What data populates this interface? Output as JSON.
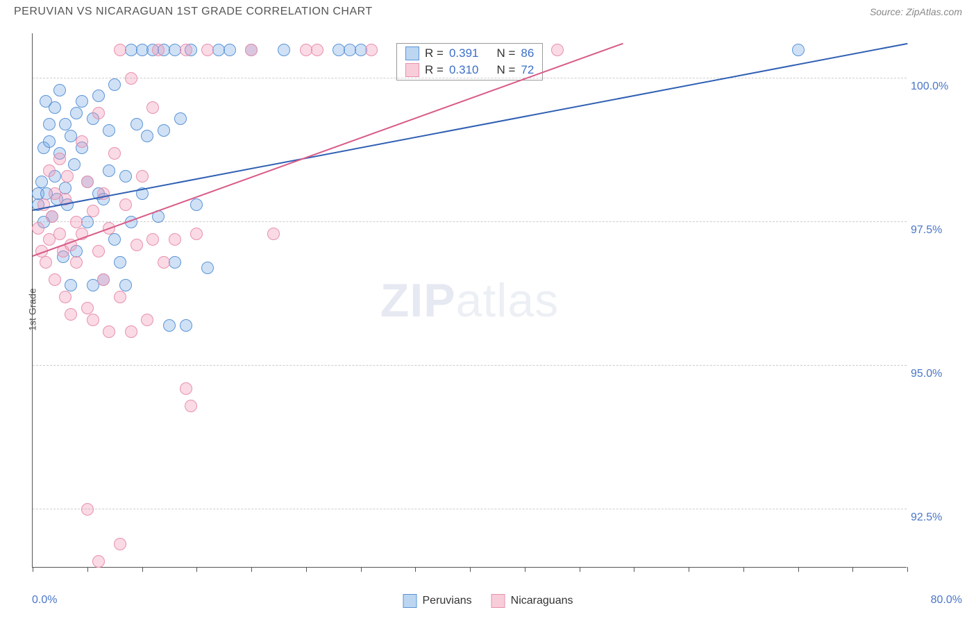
{
  "header": {
    "title": "PERUVIAN VS NICARAGUAN 1ST GRADE CORRELATION CHART",
    "source": "Source: ZipAtlas.com"
  },
  "axis": {
    "y_title": "1st Grade",
    "x_min_label": "0.0%",
    "x_max_label": "80.0%"
  },
  "chart": {
    "type": "scatter",
    "background_color": "#ffffff",
    "grid_color": "#cccccc",
    "axis_color": "#555555",
    "x_range": [
      0,
      80
    ],
    "y_range": [
      91.5,
      100.8
    ],
    "y_ticks": [
      92.5,
      95.0,
      97.5,
      100.0
    ],
    "y_tick_labels": [
      "92.5%",
      "95.0%",
      "97.5%",
      "100.0%"
    ],
    "x_minor_ticks": [
      0,
      5,
      10,
      15,
      20,
      25,
      30,
      35,
      40,
      45,
      50,
      55,
      60,
      65,
      70,
      75,
      80
    ],
    "marker_radius": 9,
    "marker_stroke_width": 1.5,
    "series": [
      {
        "name": "Peruvians",
        "fill": "rgba(120,170,230,0.35)",
        "stroke": "#5a94d6",
        "swatch_fill": "#bcd6f2",
        "swatch_stroke": "#5a94d6",
        "R": "0.391",
        "N": "86",
        "trend": {
          "x1": 0,
          "y1": 97.7,
          "x2": 80,
          "y2": 100.6,
          "color": "#2f5fb3",
          "width": 2
        },
        "points": [
          [
            0.5,
            98.0
          ],
          [
            0.5,
            97.8
          ],
          [
            0.8,
            98.2
          ],
          [
            1.0,
            97.5
          ],
          [
            1.0,
            98.8
          ],
          [
            1.2,
            99.6
          ],
          [
            1.3,
            98.0
          ],
          [
            1.5,
            98.9
          ],
          [
            1.5,
            99.2
          ],
          [
            1.8,
            97.6
          ],
          [
            2.0,
            98.3
          ],
          [
            2.0,
            99.5
          ],
          [
            2.2,
            97.9
          ],
          [
            2.5,
            98.7
          ],
          [
            2.5,
            99.8
          ],
          [
            2.8,
            96.9
          ],
          [
            3.0,
            99.2
          ],
          [
            3.0,
            98.1
          ],
          [
            3.2,
            97.8
          ],
          [
            3.5,
            99.0
          ],
          [
            3.5,
            96.4
          ],
          [
            3.8,
            98.5
          ],
          [
            4.0,
            99.4
          ],
          [
            4.0,
            97.0
          ],
          [
            4.5,
            98.8
          ],
          [
            4.5,
            99.6
          ],
          [
            5.0,
            97.5
          ],
          [
            5.0,
            98.2
          ],
          [
            5.5,
            99.3
          ],
          [
            5.5,
            96.4
          ],
          [
            6.0,
            98.0
          ],
          [
            6.0,
            99.7
          ],
          [
            6.5,
            97.9
          ],
          [
            6.5,
            96.5
          ],
          [
            7.0,
            99.1
          ],
          [
            7.0,
            98.4
          ],
          [
            7.5,
            99.9
          ],
          [
            7.5,
            97.2
          ],
          [
            8.0,
            96.8
          ],
          [
            8.5,
            98.3
          ],
          [
            8.5,
            96.4
          ],
          [
            9.0,
            100.5
          ],
          [
            9.0,
            97.5
          ],
          [
            9.5,
            99.2
          ],
          [
            10.0,
            100.5
          ],
          [
            10.0,
            98.0
          ],
          [
            10.5,
            99.0
          ],
          [
            11.0,
            100.5
          ],
          [
            11.5,
            97.6
          ],
          [
            12.0,
            99.1
          ],
          [
            12.0,
            100.5
          ],
          [
            12.5,
            95.7
          ],
          [
            13.0,
            100.5
          ],
          [
            13.0,
            96.8
          ],
          [
            13.5,
            99.3
          ],
          [
            14.0,
            95.7
          ],
          [
            14.5,
            100.5
          ],
          [
            15.0,
            97.8
          ],
          [
            16.0,
            96.7
          ],
          [
            17.0,
            100.5
          ],
          [
            18.0,
            100.5
          ],
          [
            20.0,
            100.5
          ],
          [
            23.0,
            100.5
          ],
          [
            28.0,
            100.5
          ],
          [
            29.0,
            100.5
          ],
          [
            30.0,
            100.5
          ],
          [
            70.0,
            100.5
          ]
        ]
      },
      {
        "name": "Nicaraguans",
        "fill": "rgba(240,150,180,0.35)",
        "stroke": "#e890ad",
        "swatch_fill": "#f7cdd9",
        "swatch_stroke": "#e890ad",
        "R": "0.310",
        "N": "72",
        "trend": {
          "x1": 0,
          "y1": 96.9,
          "x2": 54,
          "y2": 100.6,
          "color": "#d85a87",
          "width": 2
        },
        "points": [
          [
            0.5,
            97.4
          ],
          [
            0.8,
            97.0
          ],
          [
            1.0,
            97.8
          ],
          [
            1.2,
            96.8
          ],
          [
            1.5,
            98.4
          ],
          [
            1.5,
            97.2
          ],
          [
            1.8,
            97.6
          ],
          [
            2.0,
            98.0
          ],
          [
            2.0,
            96.5
          ],
          [
            2.5,
            97.3
          ],
          [
            2.5,
            98.6
          ],
          [
            2.8,
            97.0
          ],
          [
            3.0,
            96.2
          ],
          [
            3.0,
            97.9
          ],
          [
            3.2,
            98.3
          ],
          [
            3.5,
            97.1
          ],
          [
            3.5,
            95.9
          ],
          [
            4.0,
            97.5
          ],
          [
            4.0,
            96.8
          ],
          [
            4.5,
            98.9
          ],
          [
            4.5,
            97.3
          ],
          [
            5.0,
            96.0
          ],
          [
            5.0,
            98.2
          ],
          [
            5.5,
            97.7
          ],
          [
            5.5,
            95.8
          ],
          [
            6.0,
            99.4
          ],
          [
            6.0,
            97.0
          ],
          [
            6.5,
            96.5
          ],
          [
            6.5,
            98.0
          ],
          [
            7.0,
            95.6
          ],
          [
            7.0,
            97.4
          ],
          [
            7.5,
            98.7
          ],
          [
            8.0,
            96.2
          ],
          [
            8.0,
            100.5
          ],
          [
            8.5,
            97.8
          ],
          [
            9.0,
            95.6
          ],
          [
            9.0,
            100.0
          ],
          [
            9.5,
            97.1
          ],
          [
            10.0,
            98.3
          ],
          [
            10.5,
            95.8
          ],
          [
            11.0,
            99.5
          ],
          [
            11.0,
            97.2
          ],
          [
            11.5,
            100.5
          ],
          [
            12.0,
            96.8
          ],
          [
            13.0,
            97.2
          ],
          [
            14.0,
            100.5
          ],
          [
            14.0,
            94.6
          ],
          [
            14.5,
            94.3
          ],
          [
            15.0,
            97.3
          ],
          [
            16.0,
            100.5
          ],
          [
            20.0,
            100.5
          ],
          [
            22.0,
            97.3
          ],
          [
            25.0,
            100.5
          ],
          [
            26.0,
            100.5
          ],
          [
            31.0,
            100.5
          ],
          [
            48.0,
            100.5
          ],
          [
            5.0,
            92.5
          ],
          [
            6.0,
            91.6
          ],
          [
            8.0,
            91.9
          ]
        ]
      }
    ]
  },
  "legend_top": {
    "rows": [
      {
        "swatch_fill": "#bcd6f2",
        "swatch_stroke": "#5a94d6",
        "r_label": "R =",
        "r_val": "0.391",
        "n_label": "N =",
        "n_val": "86"
      },
      {
        "swatch_fill": "#f7cdd9",
        "swatch_stroke": "#e890ad",
        "r_label": "R =",
        "r_val": "0.310",
        "n_label": "N =",
        "n_val": "72"
      }
    ]
  },
  "legend_bottom": {
    "items": [
      {
        "swatch_fill": "#bcd6f2",
        "swatch_stroke": "#5a94d6",
        "label": "Peruvians"
      },
      {
        "swatch_fill": "#f7cdd9",
        "swatch_stroke": "#e890ad",
        "label": "Nicaraguans"
      }
    ]
  },
  "watermark": {
    "bold": "ZIP",
    "light": "atlas"
  }
}
